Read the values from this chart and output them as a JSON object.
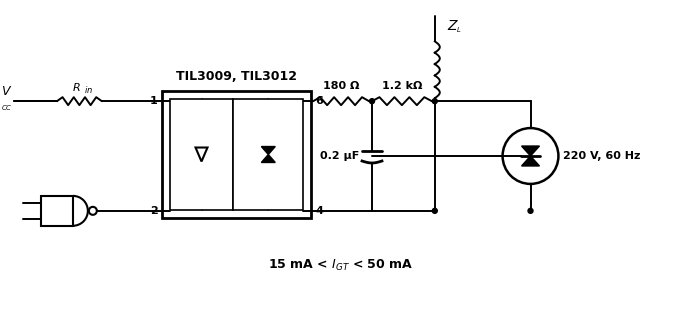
{
  "bg_color": "#ffffff",
  "line_color": "#000000",
  "fig_width": 6.98,
  "fig_height": 3.11,
  "dpi": 100,
  "title_text": "TIL3009, TIL3012",
  "label_vcc": "V",
  "label_vcc_sub": "CC",
  "label_rin": "R",
  "label_rin_sub": "in",
  "label_zl": "Z",
  "label_zl_sub": "L",
  "label_180": "180 Ω",
  "label_1k2": "1.2 kΩ",
  "label_cap": "0.2 μF",
  "label_voltage": "220 V, 60 Hz",
  "label_current_start": "15 mA < I",
  "label_current_sub": "GT",
  "label_current_end": " < 50 mA",
  "label_pin1": "1",
  "label_pin2": "2",
  "label_pin4": "4",
  "label_pin6": "6"
}
